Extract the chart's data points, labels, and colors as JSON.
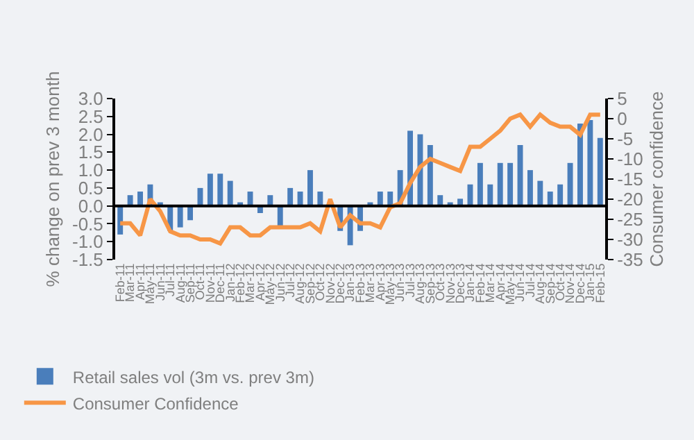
{
  "chart_data": {
    "type": "bar",
    "ylabel": "% change on prev 3 month",
    "y2label": "Consumer confidence",
    "categories": [
      "Feb-11",
      "Mar-11",
      "Apr-11",
      "May-11",
      "Jun-11",
      "Jul-11",
      "Aug-11",
      "Sep-11",
      "Oct-11",
      "Nov-11",
      "Dec-11",
      "Jan-12",
      "Feb-12",
      "Mar-12",
      "Apr-12",
      "May-12",
      "Jun-12",
      "Jul-12",
      "Aug-12",
      "Sep-12",
      "Oct-12",
      "Nov-12",
      "Dec-12",
      "Jan-13",
      "Feb-13",
      "Mar-13",
      "Apr-13",
      "May-13",
      "Jun-13",
      "Jul-13",
      "Aug-13",
      "Sep-13",
      "Oct-13",
      "Nov-13",
      "Dec-13",
      "Jan-14",
      "Feb-14",
      "Mar-14",
      "Apr-14",
      "May-14",
      "Jun-14",
      "Jul-14",
      "Aug-14",
      "Sep-14",
      "Oct-14",
      "Nov-14",
      "Dec-14",
      "Jan-15",
      "Feb-15"
    ],
    "series": [
      {
        "name": "Retail sales vol (3m vs. prev 3m)",
        "color": "#4a7ebb",
        "values": [
          -0.8,
          0.3,
          0.4,
          0.6,
          0.1,
          -0.7,
          -0.6,
          -0.4,
          0.5,
          0.9,
          0.9,
          0.7,
          0.1,
          0.4,
          -0.2,
          0.3,
          -0.6,
          0.5,
          0.4,
          1.0,
          0.4,
          0.0,
          -0.7,
          -1.1,
          -0.7,
          0.1,
          0.4,
          0.4,
          1.0,
          2.1,
          2.0,
          1.7,
          0.3,
          0.1,
          0.2,
          0.6,
          1.2,
          0.6,
          1.2,
          1.2,
          1.7,
          1.0,
          0.7,
          0.4,
          0.6,
          1.2,
          2.3,
          2.4,
          1.9
        ]
      },
      {
        "name": "Consumer Confidence",
        "type": "line",
        "axis": "y2",
        "color": "#f79646",
        "values": [
          -26,
          -26,
          -29,
          -20,
          -23,
          -28,
          -29,
          -29,
          -30,
          -30,
          -31,
          -27,
          -27,
          -29,
          -29,
          -27,
          -27,
          -27,
          -27,
          -26,
          -28,
          -20,
          -27,
          -24,
          -26,
          -26,
          -27,
          -22,
          -21,
          -16,
          -12,
          -10,
          -11,
          -12,
          -13,
          -7,
          -7,
          -5,
          -3,
          0,
          1,
          -2,
          1,
          -1,
          -2,
          -2,
          -4,
          1,
          1
        ]
      }
    ],
    "ylim": [
      -1.5,
      3.0
    ],
    "yticks": [
      {
        "value": -1.5,
        "label": "-1.5"
      },
      {
        "value": -1.0,
        "label": "-1.0"
      },
      {
        "value": -0.5,
        "label": "-0.5"
      },
      {
        "value": 0,
        "label": "0.0"
      },
      {
        "value": 0.5,
        "label": "0.5"
      },
      {
        "value": 1.0,
        "label": "1.0"
      },
      {
        "value": 1.5,
        "label": "1.5"
      },
      {
        "value": 2.0,
        "label": "2.0"
      },
      {
        "value": 2.5,
        "label": "2.5"
      },
      {
        "value": 3.0,
        "label": "3.0"
      }
    ],
    "y2lim": [
      -35,
      5
    ],
    "y2ticks": [
      -35,
      -30,
      -25,
      -20,
      -15,
      -10,
      -5,
      0,
      5
    ],
    "legend": "bottom"
  }
}
